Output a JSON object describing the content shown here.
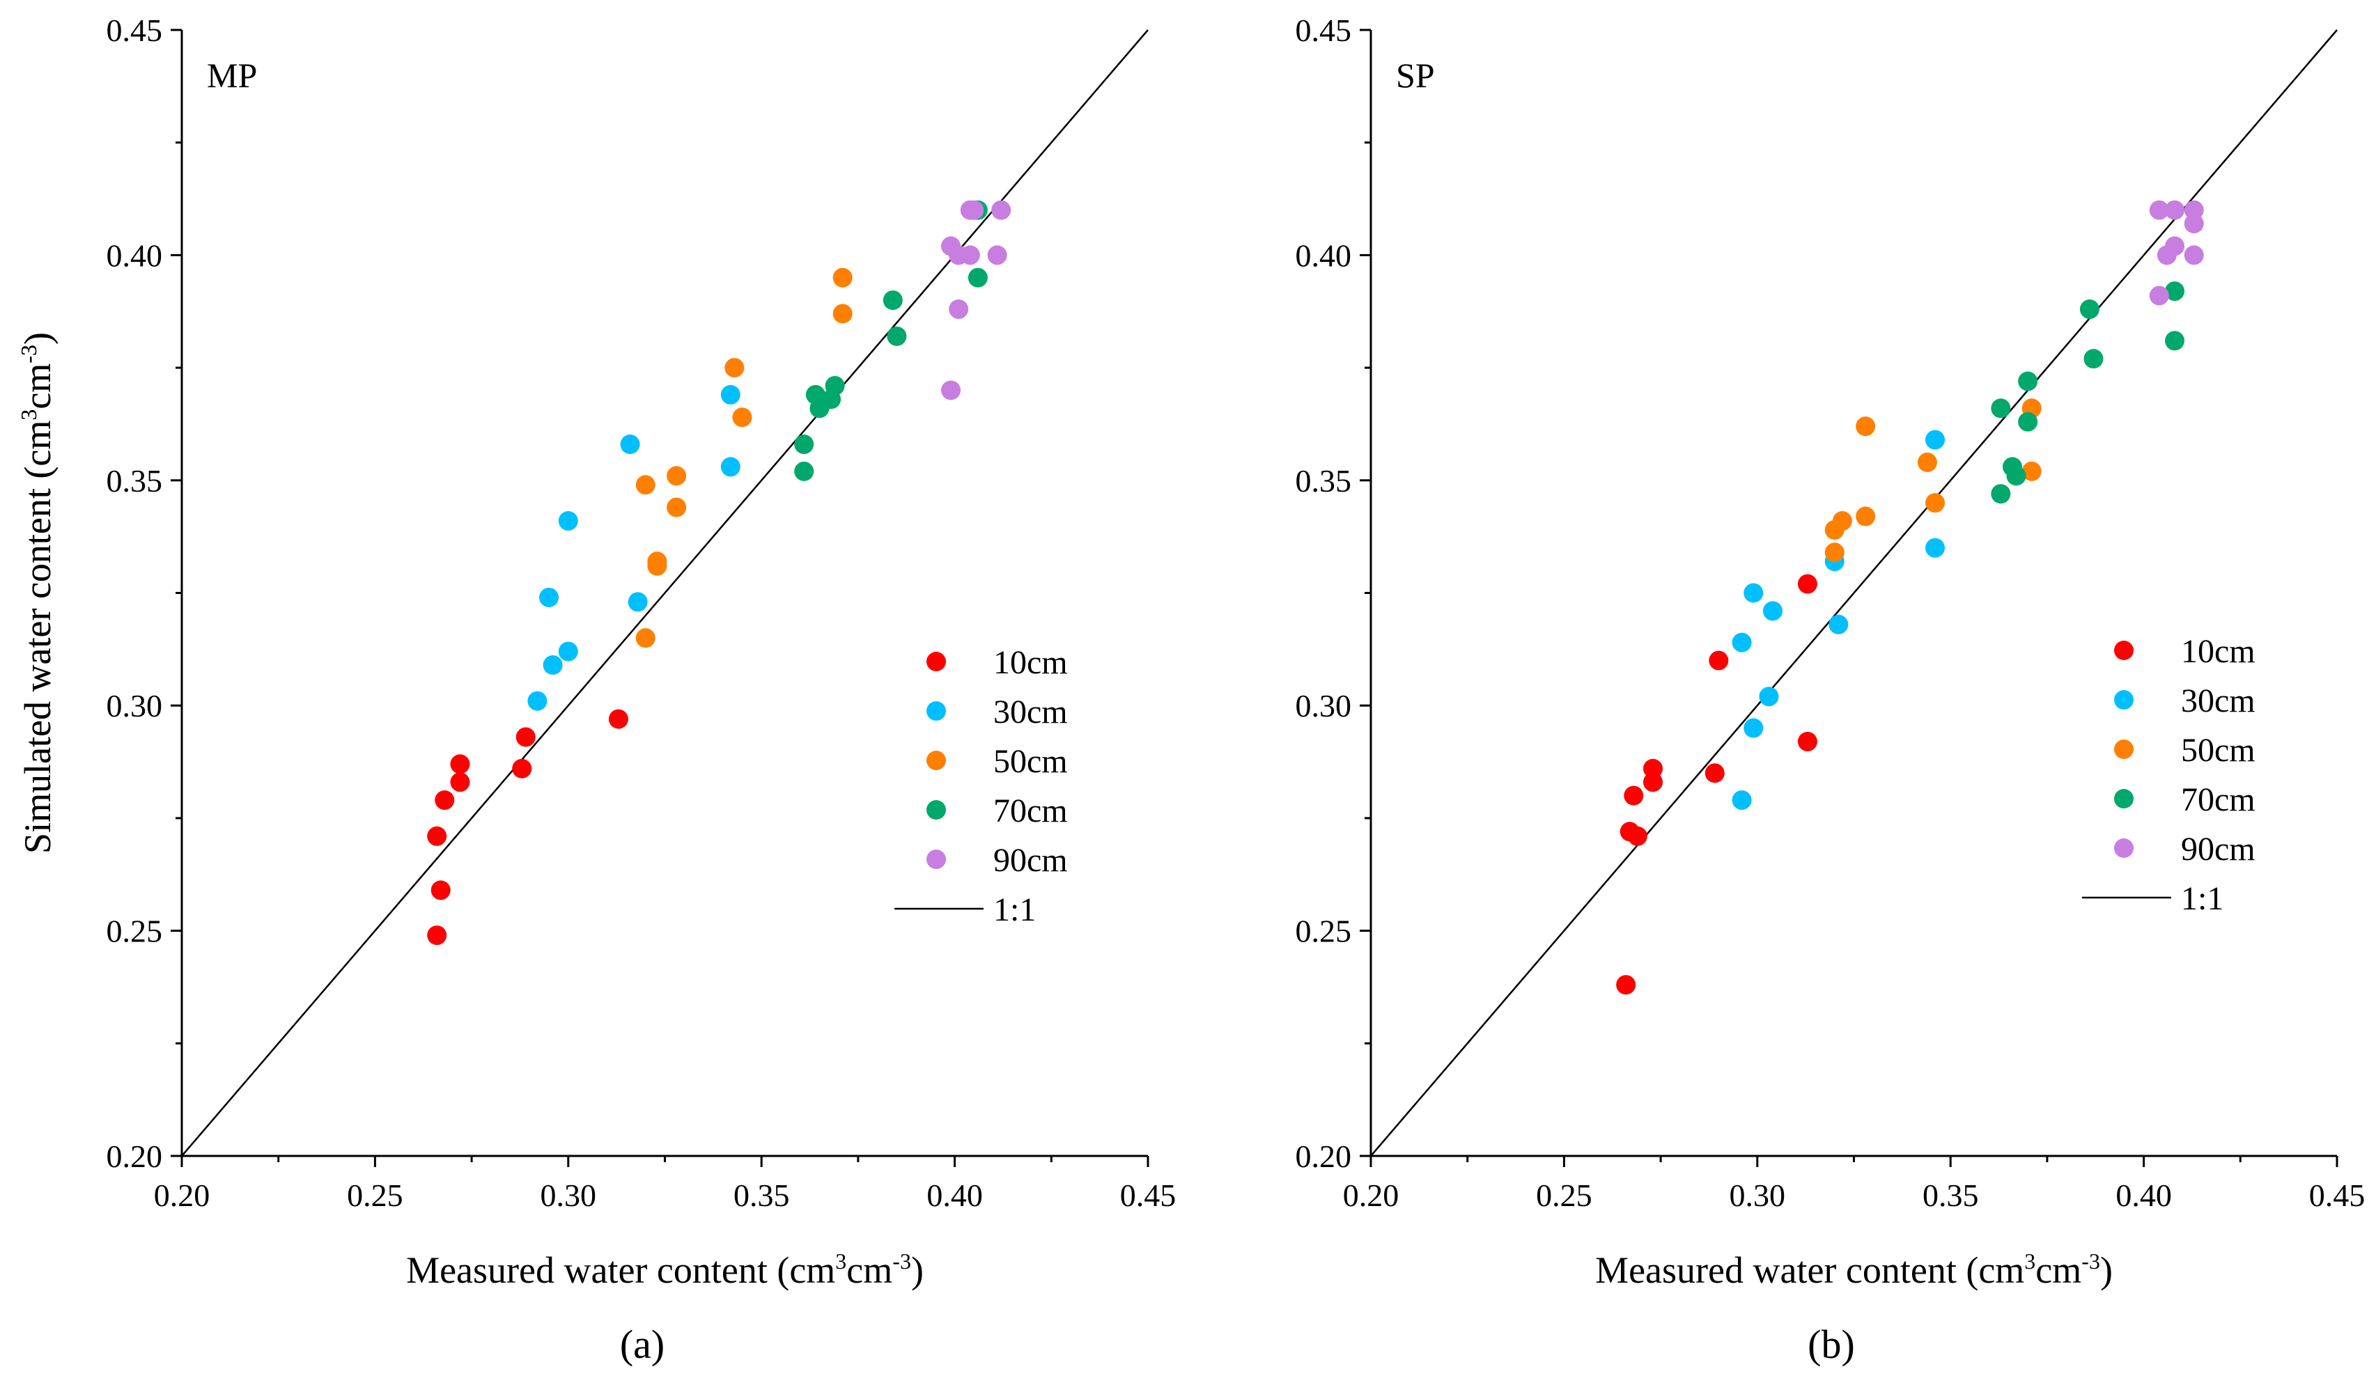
{
  "figure": {
    "colors": {
      "10cm": "#ff0000",
      "30cm": "#00bfff",
      "50cm": "#ff8000",
      "70cm": "#00a86b",
      "90cm": "#c77ee0",
      "line": "#000000"
    }
  },
  "chart_data": [
    {
      "type": "scatter",
      "panel_label": "MP",
      "caption": "(a)",
      "xlabel": {
        "main": "Measured water content (cm",
        "sup1": "3",
        "mid": "cm",
        "sup2": "-3",
        "end": ")"
      },
      "ylabel": {
        "main": "Simulated water content (cm",
        "sup1": "3",
        "mid": "cm",
        "sup2": "-3",
        "end": ")"
      },
      "xlim": [
        0.2,
        0.45
      ],
      "ylim": [
        0.2,
        0.45
      ],
      "ticks": [
        "0.20",
        "0.25",
        "0.30",
        "0.35",
        "0.40",
        "0.45"
      ],
      "legend_position": "right-middle",
      "reference_line": {
        "label": "1:1",
        "from": [
          0.2,
          0.2
        ],
        "to": [
          0.45,
          0.45
        ]
      },
      "series": [
        {
          "name": "10cm",
          "points": [
            [
              0.266,
              0.271
            ],
            [
              0.268,
              0.279
            ],
            [
              0.272,
              0.287
            ],
            [
              0.272,
              0.283
            ],
            [
              0.267,
              0.259
            ],
            [
              0.266,
              0.249
            ],
            [
              0.288,
              0.286
            ],
            [
              0.289,
              0.293
            ],
            [
              0.313,
              0.297
            ]
          ]
        },
        {
          "name": "30cm",
          "points": [
            [
              0.292,
              0.301
            ],
            [
              0.296,
              0.309
            ],
            [
              0.3,
              0.312
            ],
            [
              0.295,
              0.324
            ],
            [
              0.3,
              0.341
            ],
            [
              0.316,
              0.358
            ],
            [
              0.318,
              0.323
            ],
            [
              0.342,
              0.369
            ],
            [
              0.342,
              0.353
            ]
          ]
        },
        {
          "name": "50cm",
          "points": [
            [
              0.32,
              0.315
            ],
            [
              0.323,
              0.332
            ],
            [
              0.323,
              0.331
            ],
            [
              0.32,
              0.349
            ],
            [
              0.328,
              0.351
            ],
            [
              0.328,
              0.344
            ],
            [
              0.343,
              0.375
            ],
            [
              0.345,
              0.364
            ],
            [
              0.371,
              0.395
            ],
            [
              0.371,
              0.387
            ]
          ]
        },
        {
          "name": "70cm",
          "points": [
            [
              0.361,
              0.352
            ],
            [
              0.361,
              0.358
            ],
            [
              0.364,
              0.369
            ],
            [
              0.365,
              0.366
            ],
            [
              0.368,
              0.368
            ],
            [
              0.369,
              0.371
            ],
            [
              0.384,
              0.39
            ],
            [
              0.385,
              0.382
            ],
            [
              0.406,
              0.395
            ],
            [
              0.406,
              0.41
            ]
          ]
        },
        {
          "name": "90cm",
          "points": [
            [
              0.399,
              0.402
            ],
            [
              0.401,
              0.4
            ],
            [
              0.404,
              0.4
            ],
            [
              0.404,
              0.41
            ],
            [
              0.405,
              0.41
            ],
            [
              0.412,
              0.41
            ],
            [
              0.411,
              0.4
            ],
            [
              0.401,
              0.388
            ],
            [
              0.399,
              0.37
            ]
          ]
        }
      ]
    },
    {
      "type": "scatter",
      "panel_label": "SP",
      "caption": "(b)",
      "xlabel": {
        "main": "Measured water content (cm",
        "sup1": "3",
        "mid": "cm",
        "sup2": "-3",
        "end": ")"
      },
      "ylabel": {
        "main": "Simulated water content (cm",
        "sup1": "3",
        "mid": "cm",
        "sup2": "-3",
        "end": ")"
      },
      "xlim": [
        0.2,
        0.45
      ],
      "ylim": [
        0.2,
        0.45
      ],
      "ticks": [
        "0.20",
        "0.25",
        "0.30",
        "0.35",
        "0.40",
        "0.45"
      ],
      "legend_position": "right-middle",
      "reference_line": {
        "label": "1:1",
        "from": [
          0.2,
          0.2
        ],
        "to": [
          0.45,
          0.45
        ]
      },
      "series": [
        {
          "name": "10cm",
          "points": [
            [
              0.266,
              0.238
            ],
            [
              0.267,
              0.272
            ],
            [
              0.269,
              0.271
            ],
            [
              0.268,
              0.28
            ],
            [
              0.273,
              0.286
            ],
            [
              0.273,
              0.283
            ],
            [
              0.289,
              0.285
            ],
            [
              0.29,
              0.31
            ],
            [
              0.313,
              0.327
            ],
            [
              0.313,
              0.292
            ]
          ]
        },
        {
          "name": "30cm",
          "points": [
            [
              0.296,
              0.279
            ],
            [
              0.299,
              0.295
            ],
            [
              0.303,
              0.302
            ],
            [
              0.296,
              0.314
            ],
            [
              0.299,
              0.325
            ],
            [
              0.304,
              0.321
            ],
            [
              0.32,
              0.332
            ],
            [
              0.321,
              0.318
            ],
            [
              0.346,
              0.359
            ],
            [
              0.346,
              0.335
            ]
          ]
        },
        {
          "name": "50cm",
          "points": [
            [
              0.32,
              0.339
            ],
            [
              0.32,
              0.334
            ],
            [
              0.322,
              0.341
            ],
            [
              0.328,
              0.342
            ],
            [
              0.328,
              0.362
            ],
            [
              0.344,
              0.354
            ],
            [
              0.346,
              0.345
            ],
            [
              0.371,
              0.366
            ],
            [
              0.371,
              0.352
            ]
          ]
        },
        {
          "name": "70cm",
          "points": [
            [
              0.363,
              0.366
            ],
            [
              0.363,
              0.347
            ],
            [
              0.366,
              0.353
            ],
            [
              0.367,
              0.351
            ],
            [
              0.37,
              0.372
            ],
            [
              0.37,
              0.363
            ],
            [
              0.386,
              0.388
            ],
            [
              0.387,
              0.377
            ],
            [
              0.408,
              0.392
            ],
            [
              0.408,
              0.381
            ]
          ]
        },
        {
          "name": "90cm",
          "points": [
            [
              0.404,
              0.41
            ],
            [
              0.408,
              0.41
            ],
            [
              0.413,
              0.41
            ],
            [
              0.413,
              0.407
            ],
            [
              0.406,
              0.4
            ],
            [
              0.408,
              0.402
            ],
            [
              0.413,
              0.4
            ],
            [
              0.404,
              0.391
            ]
          ]
        }
      ]
    }
  ]
}
